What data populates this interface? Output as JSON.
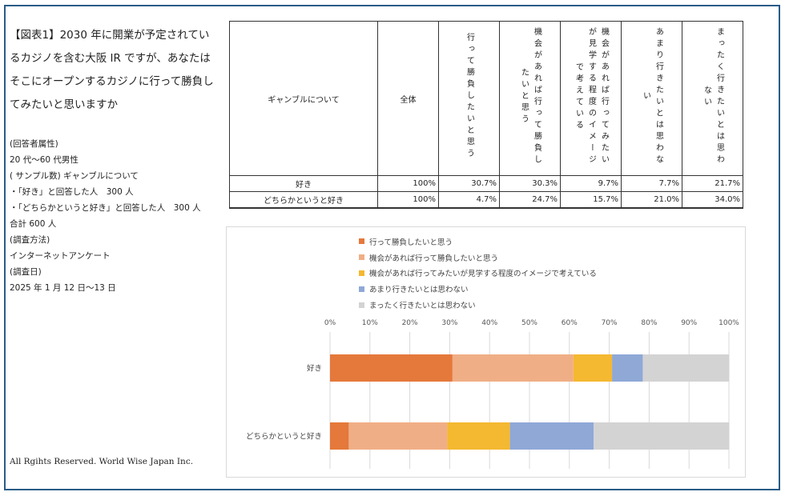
{
  "question": "【図表1】2030 年に開業が予定されているカジノを含む大阪 IR ですが、あなたはそこにオープンするカジノに行って勝負してみたいと思いますか",
  "meta": {
    "l1": "(回答者属性)",
    "l2": "20 代〜60 代男性",
    "l3": "( サンプル数) ギャンブルについて",
    "l4": "・「好き」と回答した人　300 人",
    "l5": "・「どちらかというと好き」と回答した人　300 人",
    "l6": "合計 600 人",
    "l7": "(調査方法)",
    "l8": "インターネットアンケート",
    "l9": "(調査日)",
    "l10": "2025 年 1 月 12 日〜13 日"
  },
  "copyright": "All Rgihts Reserved.  World Wise Japan Inc.",
  "table": {
    "header_label": "ギャンブルについて",
    "header_total": "全体",
    "header_options": [
      "行って勝負したいと思う",
      "機会があれば行って勝負したいと思う",
      "機会があれば行ってみたいが見学する程度のイメージで考えている",
      "あまり行きたいとは思わない",
      "まったく行きたいとは思わない"
    ],
    "rows": [
      {
        "label": "好き",
        "total": "100%",
        "values": [
          "30.7%",
          "30.3%",
          "9.7%",
          "7.7%",
          "21.7%"
        ]
      },
      {
        "label": "どちらかというと好き",
        "total": "100%",
        "values": [
          "4.7%",
          "24.7%",
          "15.7%",
          "21.0%",
          "34.0%"
        ]
      }
    ]
  },
  "colors": {
    "series": [
      "#e5783b",
      "#f0ae86",
      "#f4b831",
      "#8fa8d6",
      "#d3d3d3"
    ],
    "frame": "#2a5b86",
    "grid": "#d9d9d9"
  },
  "chart_data": {
    "type": "bar",
    "orientation": "horizontal",
    "stacked": true,
    "categories": [
      "好き",
      "どちらかというと好き"
    ],
    "series": [
      {
        "name": "行って勝負したいと思う",
        "values": [
          30.7,
          4.7
        ]
      },
      {
        "name": "機会があれば行って勝負したいと思う",
        "values": [
          30.3,
          24.7
        ]
      },
      {
        "name": "機会があれば行ってみたいが見学する程度のイメージで考えている",
        "values": [
          9.7,
          15.7
        ]
      },
      {
        "name": "あまり行きたいとは思わない",
        "values": [
          7.7,
          21.0
        ]
      },
      {
        "name": "まったく行きたいとは思わない",
        "values": [
          21.7,
          34.0
        ]
      }
    ],
    "xlim": [
      0,
      100
    ],
    "xticks": [
      "0%",
      "10%",
      "20%",
      "30%",
      "40%",
      "50%",
      "60%",
      "70%",
      "80%",
      "90%",
      "100%"
    ],
    "grid": true,
    "legend_position": "top",
    "title": "",
    "xlabel": "",
    "ylabel": ""
  }
}
